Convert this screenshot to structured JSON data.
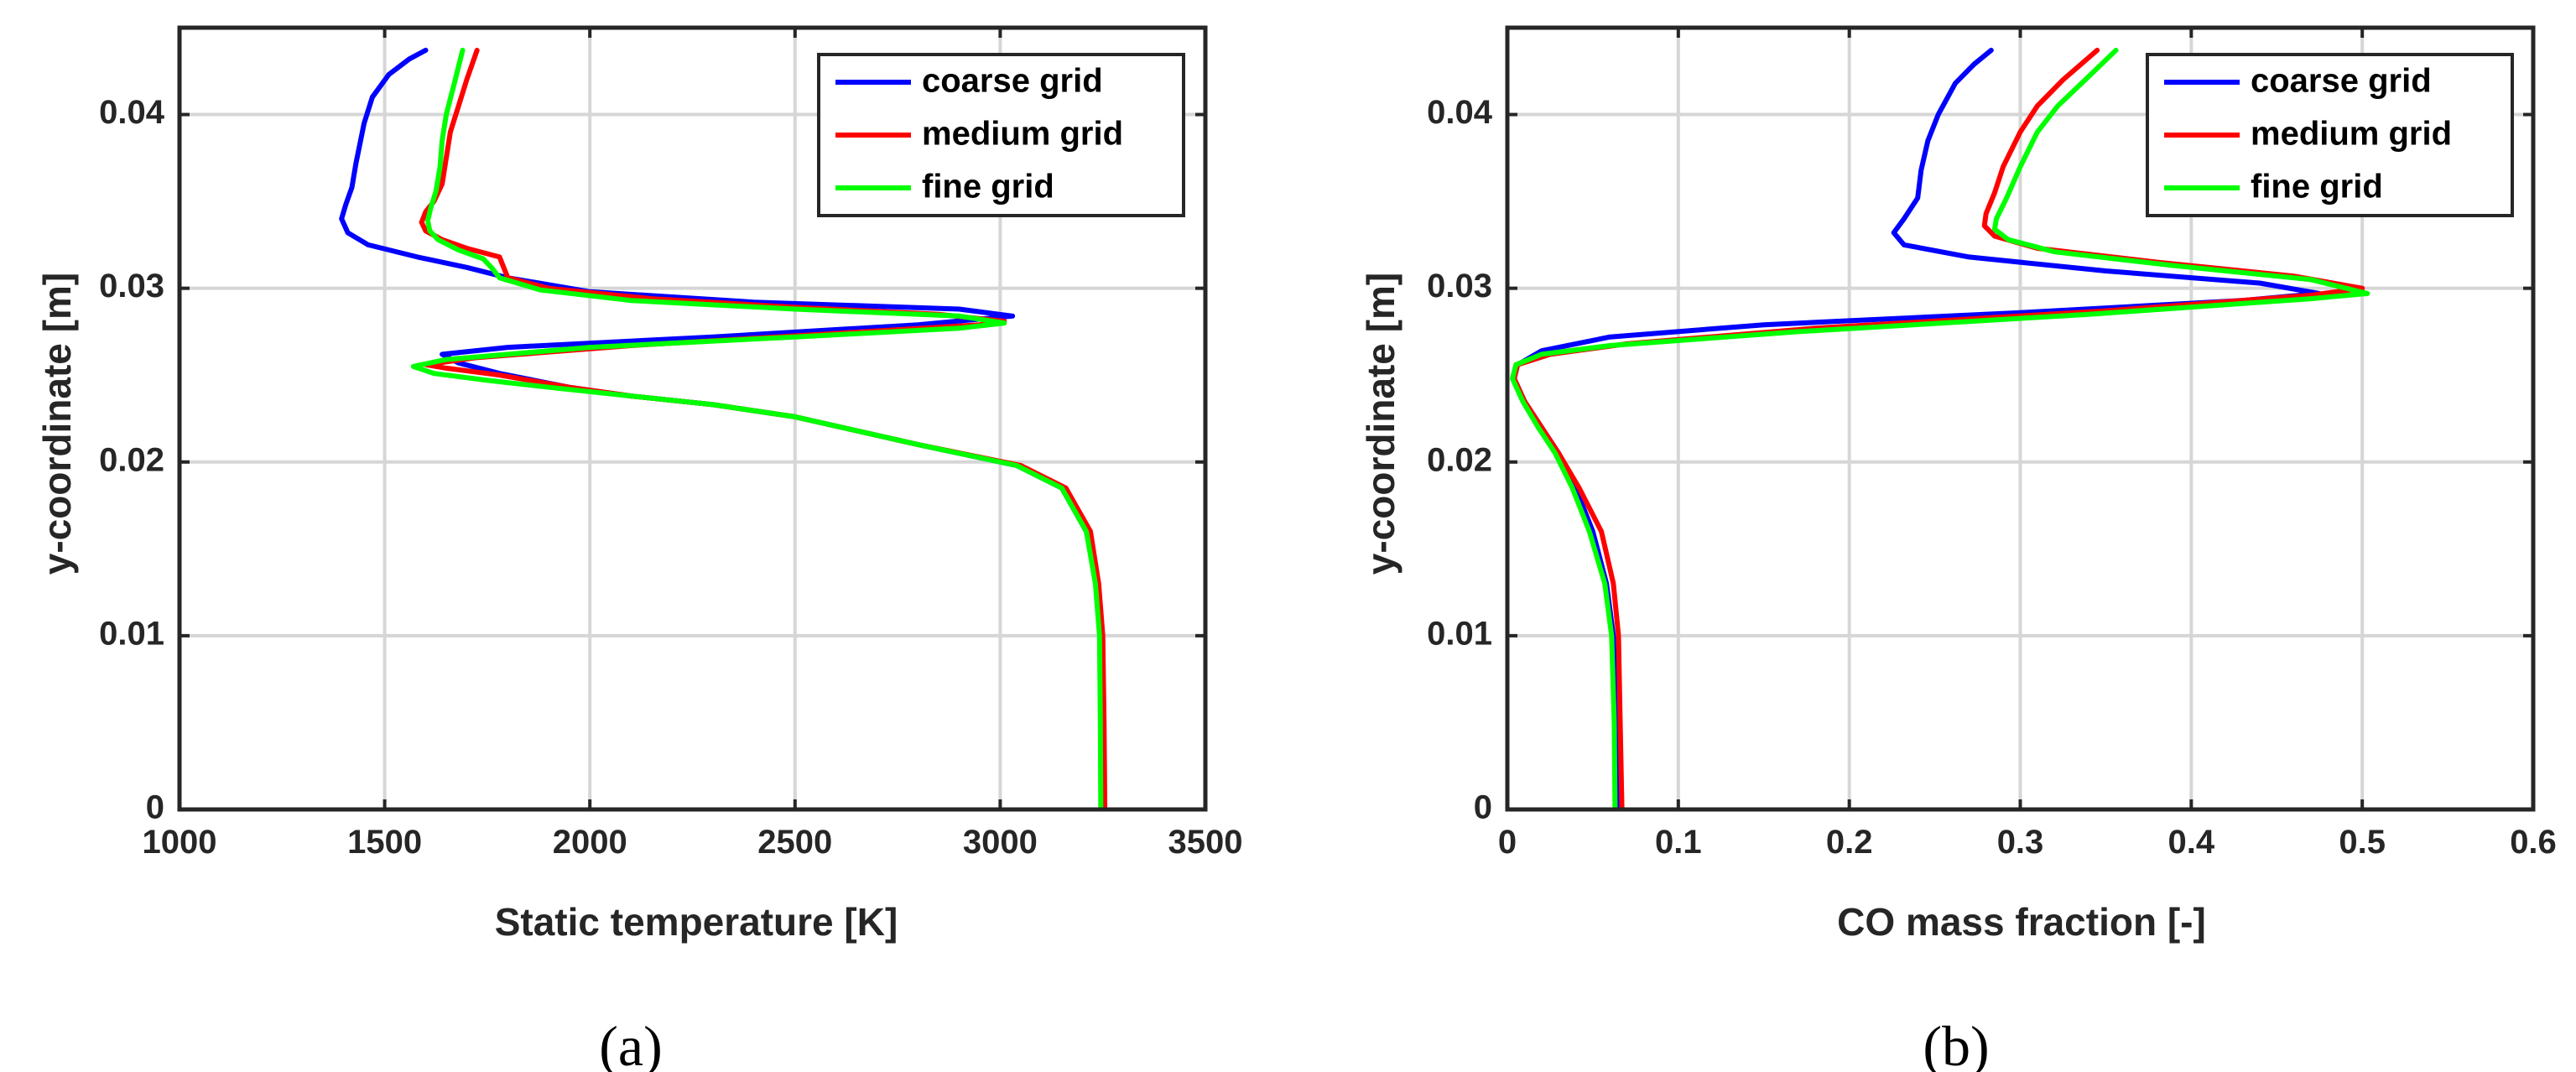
{
  "chart_data": [
    {
      "type": "line",
      "panel_label": "(a)",
      "xlabel": "Static temperature [K]",
      "ylabel": "y-coordinate [m]",
      "xlim": [
        1000,
        3500
      ],
      "ylim": [
        0,
        0.045
      ],
      "xticks": [
        1000,
        1500,
        2000,
        2500,
        3000,
        3500
      ],
      "yticks": [
        0,
        0.01,
        0.02,
        0.03,
        0.04
      ],
      "xtick_labels": [
        "1000",
        "1500",
        "2000",
        "2500",
        "3000",
        "3500"
      ],
      "ytick_labels": [
        "0",
        "0.01",
        "0.02",
        "0.03",
        "0.04"
      ],
      "grid": true,
      "legend_position": "top-right",
      "series": [
        {
          "name": "coarse grid",
          "color": "#0000ff",
          "points": [
            [
              3250,
              0
            ],
            [
              3248,
              0.005
            ],
            [
              3245,
              0.01
            ],
            [
              3235,
              0.013
            ],
            [
              3210,
              0.016
            ],
            [
              3150,
              0.0185
            ],
            [
              3040,
              0.0198
            ],
            [
              2800,
              0.021
            ],
            [
              2500,
              0.0226
            ],
            [
              2300,
              0.0233
            ],
            [
              2100,
              0.0238
            ],
            [
              1950,
              0.0243
            ],
            [
              1780,
              0.0251
            ],
            [
              1680,
              0.0257
            ],
            [
              1640,
              0.0262
            ],
            [
              1800,
              0.0266
            ],
            [
              2300,
              0.0272
            ],
            [
              2800,
              0.0279
            ],
            [
              3030,
              0.0284
            ],
            [
              2900,
              0.0288
            ],
            [
              2400,
              0.0292
            ],
            [
              2000,
              0.0298
            ],
            [
              1800,
              0.0306
            ],
            [
              1700,
              0.0312
            ],
            [
              1580,
              0.0318
            ],
            [
              1460,
              0.0325
            ],
            [
              1410,
              0.0332
            ],
            [
              1395,
              0.034
            ],
            [
              1405,
              0.0348
            ],
            [
              1420,
              0.0358
            ],
            [
              1430,
              0.0372
            ],
            [
              1450,
              0.0395
            ],
            [
              1470,
              0.041
            ],
            [
              1510,
              0.0423
            ],
            [
              1560,
              0.0432
            ],
            [
              1600,
              0.0437
            ]
          ]
        },
        {
          "name": "medium grid",
          "color": "#ff0000",
          "points": [
            [
              3255,
              0
            ],
            [
              3253,
              0.005
            ],
            [
              3250,
              0.01
            ],
            [
              3240,
              0.013
            ],
            [
              3220,
              0.016
            ],
            [
              3160,
              0.0185
            ],
            [
              3050,
              0.0198
            ],
            [
              2800,
              0.021
            ],
            [
              2500,
              0.0226
            ],
            [
              2300,
              0.0233
            ],
            [
              2100,
              0.0238
            ],
            [
              1950,
              0.0243
            ],
            [
              1780,
              0.025
            ],
            [
              1650,
              0.0254
            ],
            [
              1600,
              0.0256
            ],
            [
              1720,
              0.026
            ],
            [
              2100,
              0.0267
            ],
            [
              2600,
              0.0274
            ],
            [
              2950,
              0.0279
            ],
            [
              3010,
              0.0281
            ],
            [
              2850,
              0.0285
            ],
            [
              2500,
              0.0289
            ],
            [
              2150,
              0.0294
            ],
            [
              1900,
              0.03
            ],
            [
              1800,
              0.0306
            ],
            [
              1785,
              0.0315
            ],
            [
              1780,
              0.0318
            ],
            [
              1700,
              0.0323
            ],
            [
              1640,
              0.0328
            ],
            [
              1600,
              0.0333
            ],
            [
              1590,
              0.0338
            ],
            [
              1600,
              0.0344
            ],
            [
              1620,
              0.035
            ],
            [
              1640,
              0.036
            ],
            [
              1650,
              0.0375
            ],
            [
              1660,
              0.039
            ],
            [
              1680,
              0.0405
            ],
            [
              1700,
              0.042
            ],
            [
              1725,
              0.0437
            ]
          ]
        },
        {
          "name": "fine grid",
          "color": "#00ff00",
          "points": [
            [
              3245,
              0
            ],
            [
              3244,
              0.005
            ],
            [
              3242,
              0.01
            ],
            [
              3232,
              0.013
            ],
            [
              3210,
              0.016
            ],
            [
              3150,
              0.0185
            ],
            [
              3040,
              0.0198
            ],
            [
              2800,
              0.021
            ],
            [
              2500,
              0.0226
            ],
            [
              2300,
              0.0233
            ],
            [
              2100,
              0.0238
            ],
            [
              1900,
              0.0243
            ],
            [
              1750,
              0.0247
            ],
            [
              1620,
              0.0251
            ],
            [
              1570,
              0.0255
            ],
            [
              1650,
              0.0259
            ],
            [
              2000,
              0.0266
            ],
            [
              2500,
              0.0272
            ],
            [
              2900,
              0.0277
            ],
            [
              3010,
              0.028
            ],
            [
              2900,
              0.0284
            ],
            [
              2500,
              0.0288
            ],
            [
              2100,
              0.0293
            ],
            [
              1880,
              0.0299
            ],
            [
              1780,
              0.0306
            ],
            [
              1760,
              0.0312
            ],
            [
              1740,
              0.0317
            ],
            [
              1680,
              0.0322
            ],
            [
              1630,
              0.0328
            ],
            [
              1610,
              0.0333
            ],
            [
              1605,
              0.0339
            ],
            [
              1612,
              0.0346
            ],
            [
              1625,
              0.0356
            ],
            [
              1635,
              0.037
            ],
            [
              1640,
              0.0385
            ],
            [
              1650,
              0.04
            ],
            [
              1672,
              0.042
            ],
            [
              1690,
              0.0437
            ]
          ]
        }
      ]
    },
    {
      "type": "line",
      "panel_label": "(b)",
      "xlabel": "CO mass fraction [-]",
      "ylabel": "y-coordinate [m]",
      "xlim": [
        0,
        0.6
      ],
      "ylim": [
        0,
        0.045
      ],
      "xticks": [
        0,
        0.1,
        0.2,
        0.3,
        0.4,
        0.5,
        0.6
      ],
      "yticks": [
        0,
        0.01,
        0.02,
        0.03,
        0.04
      ],
      "xtick_labels": [
        "0",
        "0.1",
        "0.2",
        "0.3",
        "0.4",
        "0.5",
        "0.6"
      ],
      "ytick_labels": [
        "0",
        "0.01",
        "0.02",
        "0.03",
        "0.04"
      ],
      "grid": true,
      "legend_position": "top-right",
      "series": [
        {
          "name": "coarse grid",
          "color": "#0000ff",
          "points": [
            [
              0.065,
              0
            ],
            [
              0.064,
              0.005
            ],
            [
              0.062,
              0.01
            ],
            [
              0.058,
              0.013
            ],
            [
              0.05,
              0.016
            ],
            [
              0.04,
              0.0185
            ],
            [
              0.03,
              0.0205
            ],
            [
              0.02,
              0.022
            ],
            [
              0.01,
              0.0235
            ],
            [
              0.004,
              0.0248
            ],
            [
              0.006,
              0.0256
            ],
            [
              0.02,
              0.0264
            ],
            [
              0.06,
              0.0272
            ],
            [
              0.15,
              0.0279
            ],
            [
              0.3,
              0.0286
            ],
            [
              0.43,
              0.0293
            ],
            [
              0.475,
              0.0297
            ],
            [
              0.44,
              0.0303
            ],
            [
              0.35,
              0.031
            ],
            [
              0.27,
              0.0318
            ],
            [
              0.232,
              0.0325
            ],
            [
              0.226,
              0.0332
            ],
            [
              0.232,
              0.034
            ],
            [
              0.24,
              0.0352
            ],
            [
              0.242,
              0.0368
            ],
            [
              0.246,
              0.0385
            ],
            [
              0.252,
              0.04
            ],
            [
              0.262,
              0.0418
            ],
            [
              0.273,
              0.0429
            ],
            [
              0.283,
              0.0437
            ]
          ]
        },
        {
          "name": "medium grid",
          "color": "#ff0000",
          "points": [
            [
              0.067,
              0
            ],
            [
              0.066,
              0.005
            ],
            [
              0.065,
              0.01
            ],
            [
              0.062,
              0.013
            ],
            [
              0.055,
              0.016
            ],
            [
              0.042,
              0.0185
            ],
            [
              0.03,
              0.0205
            ],
            [
              0.02,
              0.022
            ],
            [
              0.01,
              0.0235
            ],
            [
              0.004,
              0.0248
            ],
            [
              0.006,
              0.0256
            ],
            [
              0.025,
              0.0262
            ],
            [
              0.07,
              0.0268
            ],
            [
              0.18,
              0.0277
            ],
            [
              0.35,
              0.0287
            ],
            [
              0.47,
              0.0296
            ],
            [
              0.5,
              0.03
            ],
            [
              0.46,
              0.0307
            ],
            [
              0.38,
              0.0315
            ],
            [
              0.31,
              0.0323
            ],
            [
              0.285,
              0.033
            ],
            [
              0.279,
              0.0336
            ],
            [
              0.28,
              0.0343
            ],
            [
              0.285,
              0.0355
            ],
            [
              0.29,
              0.037
            ],
            [
              0.3,
              0.039
            ],
            [
              0.31,
              0.0405
            ],
            [
              0.325,
              0.042
            ],
            [
              0.345,
              0.0437
            ]
          ]
        },
        {
          "name": "fine grid",
          "color": "#00ff00",
          "points": [
            [
              0.063,
              0
            ],
            [
              0.0625,
              0.005
            ],
            [
              0.061,
              0.01
            ],
            [
              0.057,
              0.013
            ],
            [
              0.048,
              0.016
            ],
            [
              0.038,
              0.0185
            ],
            [
              0.028,
              0.0205
            ],
            [
              0.018,
              0.022
            ],
            [
              0.009,
              0.0235
            ],
            [
              0.003,
              0.0248
            ],
            [
              0.005,
              0.0256
            ],
            [
              0.02,
              0.0262
            ],
            [
              0.06,
              0.0267
            ],
            [
              0.17,
              0.0275
            ],
            [
              0.34,
              0.0285
            ],
            [
              0.47,
              0.0294
            ],
            [
              0.503,
              0.0297
            ],
            [
              0.47,
              0.0305
            ],
            [
              0.39,
              0.0313
            ],
            [
              0.32,
              0.0321
            ],
            [
              0.293,
              0.0328
            ],
            [
              0.285,
              0.0334
            ],
            [
              0.286,
              0.034
            ],
            [
              0.292,
              0.0352
            ],
            [
              0.3,
              0.037
            ],
            [
              0.31,
              0.039
            ],
            [
              0.322,
              0.0405
            ],
            [
              0.338,
              0.042
            ],
            [
              0.356,
              0.0437
            ]
          ]
        }
      ]
    }
  ]
}
